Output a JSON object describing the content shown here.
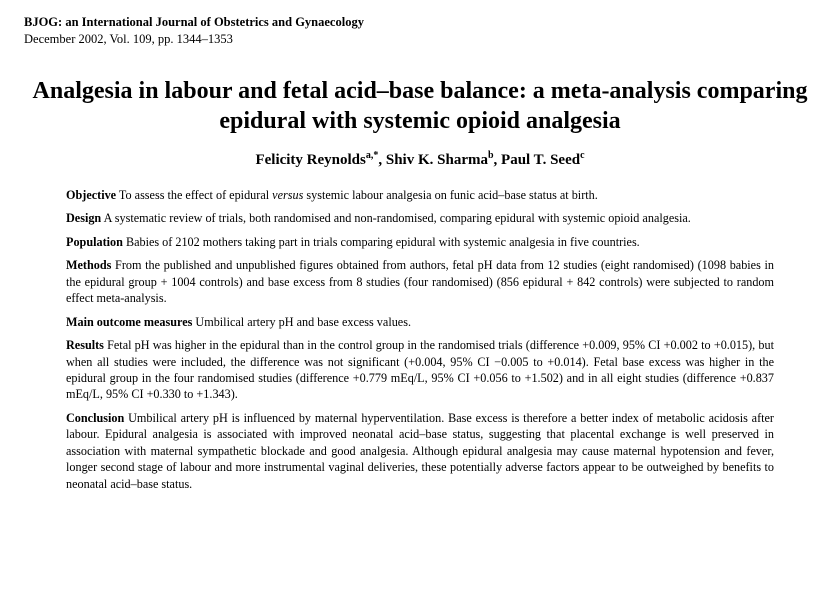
{
  "journal": {
    "name": "BJOG: an International Journal of Obstetrics and Gynaecology",
    "issue": "December 2002, Vol. 109, pp. 1344–1353"
  },
  "title": "Analgesia in labour and fetal acid–base balance: a meta-analysis comparing epidural with systemic opioid analgesia",
  "authors": [
    {
      "name": "Felicity Reynolds",
      "sup": "a,*"
    },
    {
      "name": "Shiv K. Sharma",
      "sup": "b"
    },
    {
      "name": "Paul T. Seed",
      "sup": "c"
    }
  ],
  "abstract": {
    "objective": {
      "label": "Objective",
      "pre": " To assess the effect of epidural ",
      "italic": "versus",
      "post": " systemic labour analgesia on funic acid–base status at birth."
    },
    "design": {
      "label": "Design",
      "text": " A systematic review of trials, both randomised and non-randomised, comparing epidural with systemic opioid analgesia."
    },
    "population": {
      "label": "Population",
      "text": " Babies of 2102 mothers taking part in trials comparing epidural with systemic analgesia in five countries."
    },
    "methods": {
      "label": "Methods",
      "text": " From the published and unpublished figures obtained from authors, fetal pH data from 12 studies (eight randomised) (1098 babies in the epidural group + 1004 controls) and base excess from 8 studies (four randomised) (856 epidural + 842 controls) were subjected to random effect meta-analysis."
    },
    "outcomes": {
      "label": "Main outcome measures",
      "text": " Umbilical artery pH and base excess values."
    },
    "results": {
      "label": "Results",
      "text": " Fetal pH was higher in the epidural than in the control group in the randomised trials (difference +0.009, 95% CI +0.002 to +0.015), but when all studies were included, the difference was not significant (+0.004, 95% CI −0.005 to +0.014). Fetal base excess was higher in the epidural group in the four randomised studies (difference +0.779 mEq/L, 95% CI +0.056 to +1.502) and in all eight studies (difference +0.837 mEq/L, 95% CI +0.330 to +1.343)."
    },
    "conclusion": {
      "label": "Conclusion",
      "text": " Umbilical artery pH is influenced by maternal hyperventilation. Base excess is therefore a better index of metabolic acidosis after labour. Epidural analgesia is associated with improved neonatal acid–base status, suggesting that placental exchange is well preserved in association with maternal sympathetic blockade and good analgesia. Although epidural analgesia may cause maternal hypotension and fever, longer second stage of labour and more instrumental vaginal deliveries, these potentially adverse factors appear to be outweighed by benefits to neonatal acid–base status."
    }
  }
}
